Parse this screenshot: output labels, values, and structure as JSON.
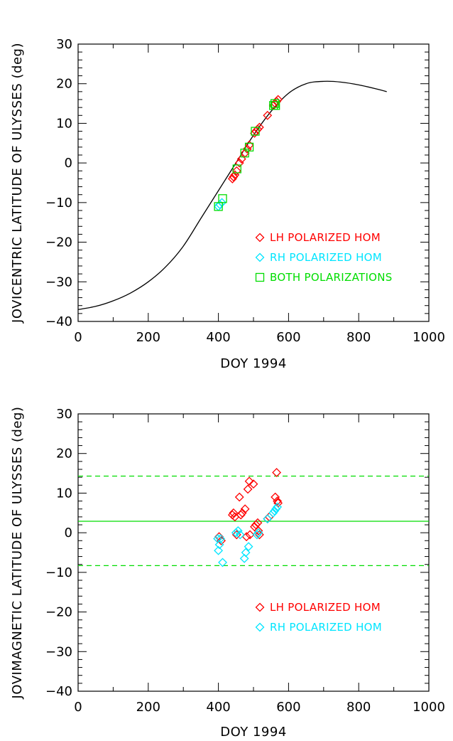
{
  "colors": {
    "lh": "#ff0000",
    "rh": "#00e5ff",
    "both": "#00dd00",
    "curve": "#000000",
    "axes": "#000000"
  },
  "chart_data": [
    {
      "type": "scatter",
      "xlabel": "DOY 1994",
      "ylabel": "JOVICENTRIC LATITUDE OF ULYSSES (deg)",
      "xlim": [
        0,
        1000
      ],
      "ylim": [
        -40,
        30
      ],
      "xticks": [
        0,
        200,
        400,
        600,
        800,
        1000
      ],
      "yticks": [
        -40,
        -30,
        -20,
        -10,
        0,
        10,
        20,
        30
      ],
      "grid": false,
      "legend_position": "bottom-right",
      "curve": {
        "x": [
          0,
          50,
          100,
          150,
          200,
          250,
          300,
          350,
          400,
          450,
          500,
          550,
          600,
          650,
          700,
          750,
          800,
          850,
          880
        ],
        "y": [
          -37,
          -36.2,
          -34.8,
          -32.8,
          -30.0,
          -26.2,
          -21.0,
          -14.0,
          -7.0,
          0.0,
          7.0,
          13.0,
          17.6,
          20.0,
          20.6,
          20.4,
          19.7,
          18.7,
          18.0
        ]
      },
      "series": [
        {
          "name": "LH POLARIZED HOM",
          "marker": "diamond",
          "color_key": "lh",
          "x": [
            440,
            443,
            447,
            452,
            460,
            466,
            476,
            482,
            488,
            503,
            507,
            512,
            517,
            540,
            557,
            562,
            566,
            570
          ],
          "y": [
            -4,
            -3.5,
            -3,
            -2,
            0,
            1,
            2.5,
            3.5,
            4.5,
            7.5,
            8,
            8.5,
            9,
            12,
            14.5,
            15,
            15.5,
            16
          ]
        },
        {
          "name": "RH POLARIZED HOM",
          "marker": "diamond",
          "color_key": "rh",
          "x": [
            400,
            404,
            410
          ],
          "y": [
            -11,
            -10.5,
            -10
          ]
        },
        {
          "name": "BOTH POLARIZATIONS",
          "marker": "square",
          "color_key": "both",
          "x": [
            400,
            412,
            453,
            475,
            488,
            505,
            557,
            561,
            563
          ],
          "y": [
            -11,
            -9,
            -1.5,
            2.5,
            4,
            8,
            14.5,
            15,
            14.5
          ]
        }
      ]
    },
    {
      "type": "scatter",
      "xlabel": "DOY 1994",
      "ylabel": "JOVIMAGNETIC LATITUDE OF ULYSSES (deg)",
      "xlim": [
        0,
        1000
      ],
      "ylim": [
        -40,
        30
      ],
      "xticks": [
        0,
        200,
        400,
        600,
        800,
        1000
      ],
      "yticks": [
        -40,
        -30,
        -20,
        -10,
        0,
        10,
        20,
        30
      ],
      "grid": false,
      "legend_position": "bottom-right",
      "reference_lines": [
        {
          "y": 14.3,
          "style": "dashed",
          "color_key": "both"
        },
        {
          "y": 2.9,
          "style": "solid",
          "color_key": "both"
        },
        {
          "y": -8.3,
          "style": "dashed",
          "color_key": "both"
        }
      ],
      "series": [
        {
          "name": "LH POLARIZED HOM",
          "marker": "diamond",
          "color_key": "lh",
          "x": [
            402,
            408,
            440,
            443,
            447,
            452,
            460,
            464,
            468,
            476,
            480,
            484,
            488,
            490,
            500,
            503,
            507,
            512,
            514,
            517,
            540,
            545,
            562,
            566,
            568,
            570
          ],
          "y": [
            -1,
            -2,
            4.5,
            5,
            4,
            -0.5,
            9,
            4.5,
            5,
            6,
            -1,
            11,
            13,
            -0.5,
            12.3,
            1.5,
            2,
            2.5,
            0.5,
            -0.5,
            3.5,
            4,
            9,
            15.2,
            8,
            7.5
          ]
        },
        {
          "name": "RH POLARIZED HOM",
          "marker": "diamond",
          "color_key": "rh",
          "x": [
            398,
            400,
            403,
            406,
            412,
            450,
            456,
            462,
            474,
            478,
            486,
            510,
            514,
            540,
            556,
            560,
            564,
            568
          ],
          "y": [
            -1.5,
            -4.5,
            -3,
            -1.5,
            -7.5,
            0,
            0.5,
            -0.5,
            -6.5,
            -5,
            -3.5,
            -0.5,
            0,
            3.5,
            5,
            5.5,
            6,
            6.5
          ]
        }
      ]
    }
  ]
}
